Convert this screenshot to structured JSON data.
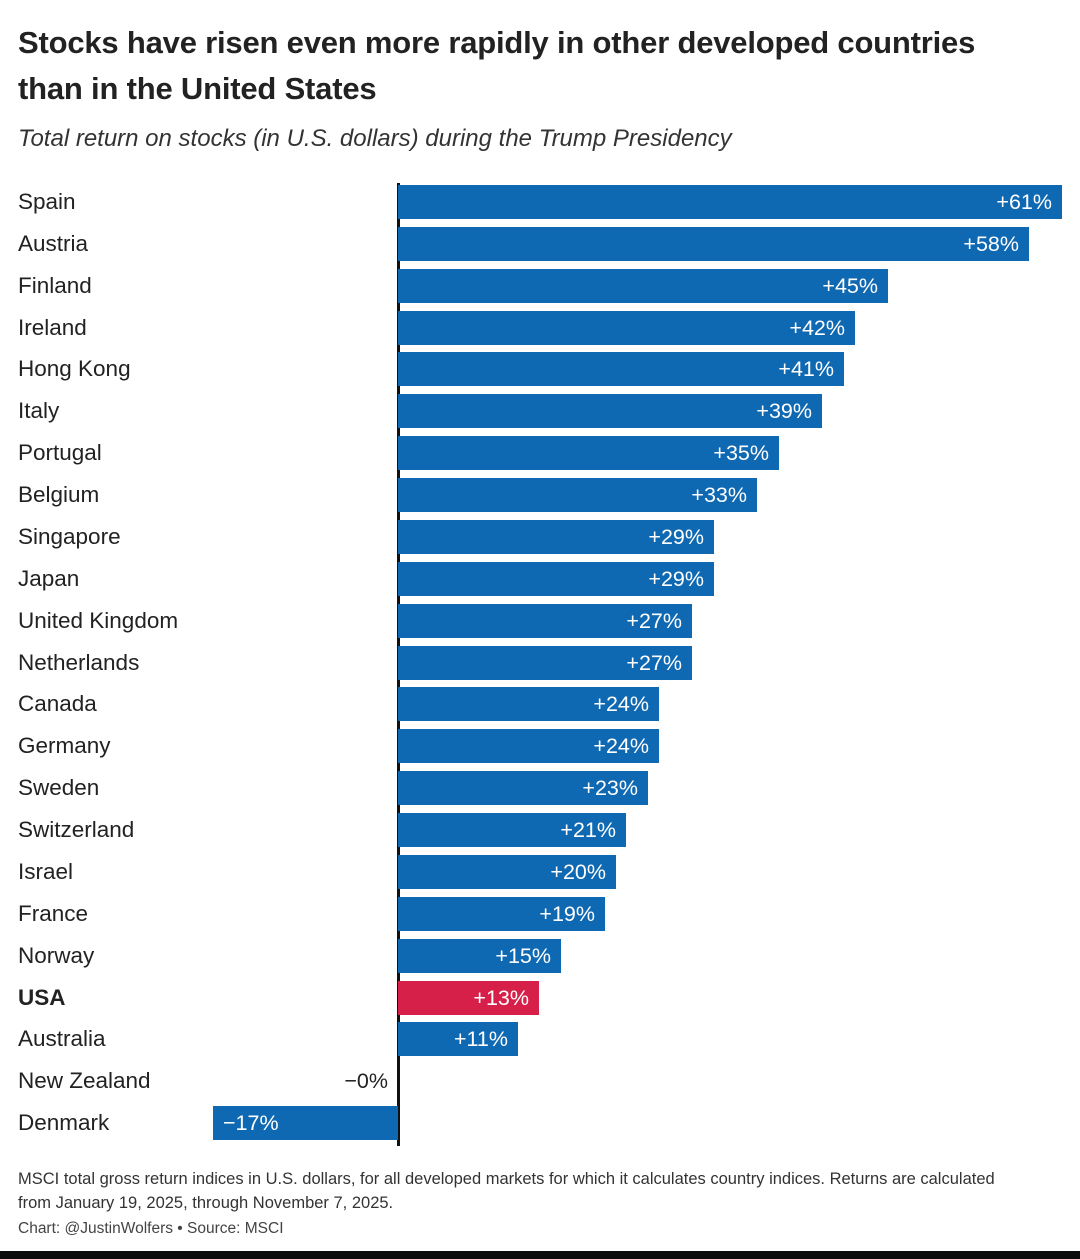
{
  "title": "Stocks have risen even more rapidly in other developed countries than in the United States",
  "subtitle": "Total return on stocks (in U.S. dollars) during the Trump Presidency",
  "footnote": "MSCI total gross return indices in U.S. dollars, for all developed markets for which it calculates country indices. Returns are calculated from January 19, 2025, through November 7, 2025.",
  "credit": "Chart: @JustinWolfers • Source: MSCI",
  "colors": {
    "bar_blue": "#0f68b2",
    "bar_red": "#d6204a",
    "axis": "#111111",
    "label_dark": "#222222",
    "value_light": "#ffffff"
  },
  "chart_data": {
    "type": "bar",
    "orientation": "horizontal",
    "unit": "%",
    "xlim": [
      -17,
      61
    ],
    "grid": false,
    "legend": false,
    "highlight_category": "USA",
    "categories": [
      "Spain",
      "Austria",
      "Finland",
      "Ireland",
      "Hong Kong",
      "Italy",
      "Portugal",
      "Belgium",
      "Singapore",
      "Japan",
      "United Kingdom",
      "Netherlands",
      "Canada",
      "Germany",
      "Sweden",
      "Switzerland",
      "Israel",
      "France",
      "Norway",
      "USA",
      "Australia",
      "New Zealand",
      "Denmark"
    ],
    "values": [
      61,
      58,
      45,
      42,
      41,
      39,
      35,
      33,
      29,
      29,
      27,
      27,
      24,
      24,
      23,
      21,
      20,
      19,
      15,
      13,
      11,
      0,
      -17
    ],
    "bars": [
      {
        "country": "Spain",
        "value": 61,
        "label": "+61%"
      },
      {
        "country": "Austria",
        "value": 58,
        "label": "+58%"
      },
      {
        "country": "Finland",
        "value": 45,
        "label": "+45%"
      },
      {
        "country": "Ireland",
        "value": 42,
        "label": "+42%"
      },
      {
        "country": "Hong Kong",
        "value": 41,
        "label": "+41%"
      },
      {
        "country": "Italy",
        "value": 39,
        "label": "+39%"
      },
      {
        "country": "Portugal",
        "value": 35,
        "label": "+35%"
      },
      {
        "country": "Belgium",
        "value": 33,
        "label": "+33%"
      },
      {
        "country": "Singapore",
        "value": 29,
        "label": "+29%"
      },
      {
        "country": "Japan",
        "value": 29,
        "label": "+29%"
      },
      {
        "country": "United Kingdom",
        "value": 27,
        "label": "+27%"
      },
      {
        "country": "Netherlands",
        "value": 27,
        "label": "+27%"
      },
      {
        "country": "Canada",
        "value": 24,
        "label": "+24%"
      },
      {
        "country": "Germany",
        "value": 24,
        "label": "+24%"
      },
      {
        "country": "Sweden",
        "value": 23,
        "label": "+23%"
      },
      {
        "country": "Switzerland",
        "value": 21,
        "label": "+21%"
      },
      {
        "country": "Israel",
        "value": 20,
        "label": "+20%"
      },
      {
        "country": "France",
        "value": 19,
        "label": "+19%"
      },
      {
        "country": "Norway",
        "value": 15,
        "label": "+15%"
      },
      {
        "country": "USA",
        "value": 13,
        "label": "+13%",
        "highlight": true,
        "bold": true
      },
      {
        "country": "Australia",
        "value": 11,
        "label": "+11%"
      },
      {
        "country": "New Zealand",
        "value": 0,
        "label": "−0%",
        "label_outside": true
      },
      {
        "country": "Denmark",
        "value": -17,
        "label": "−17%"
      }
    ]
  }
}
